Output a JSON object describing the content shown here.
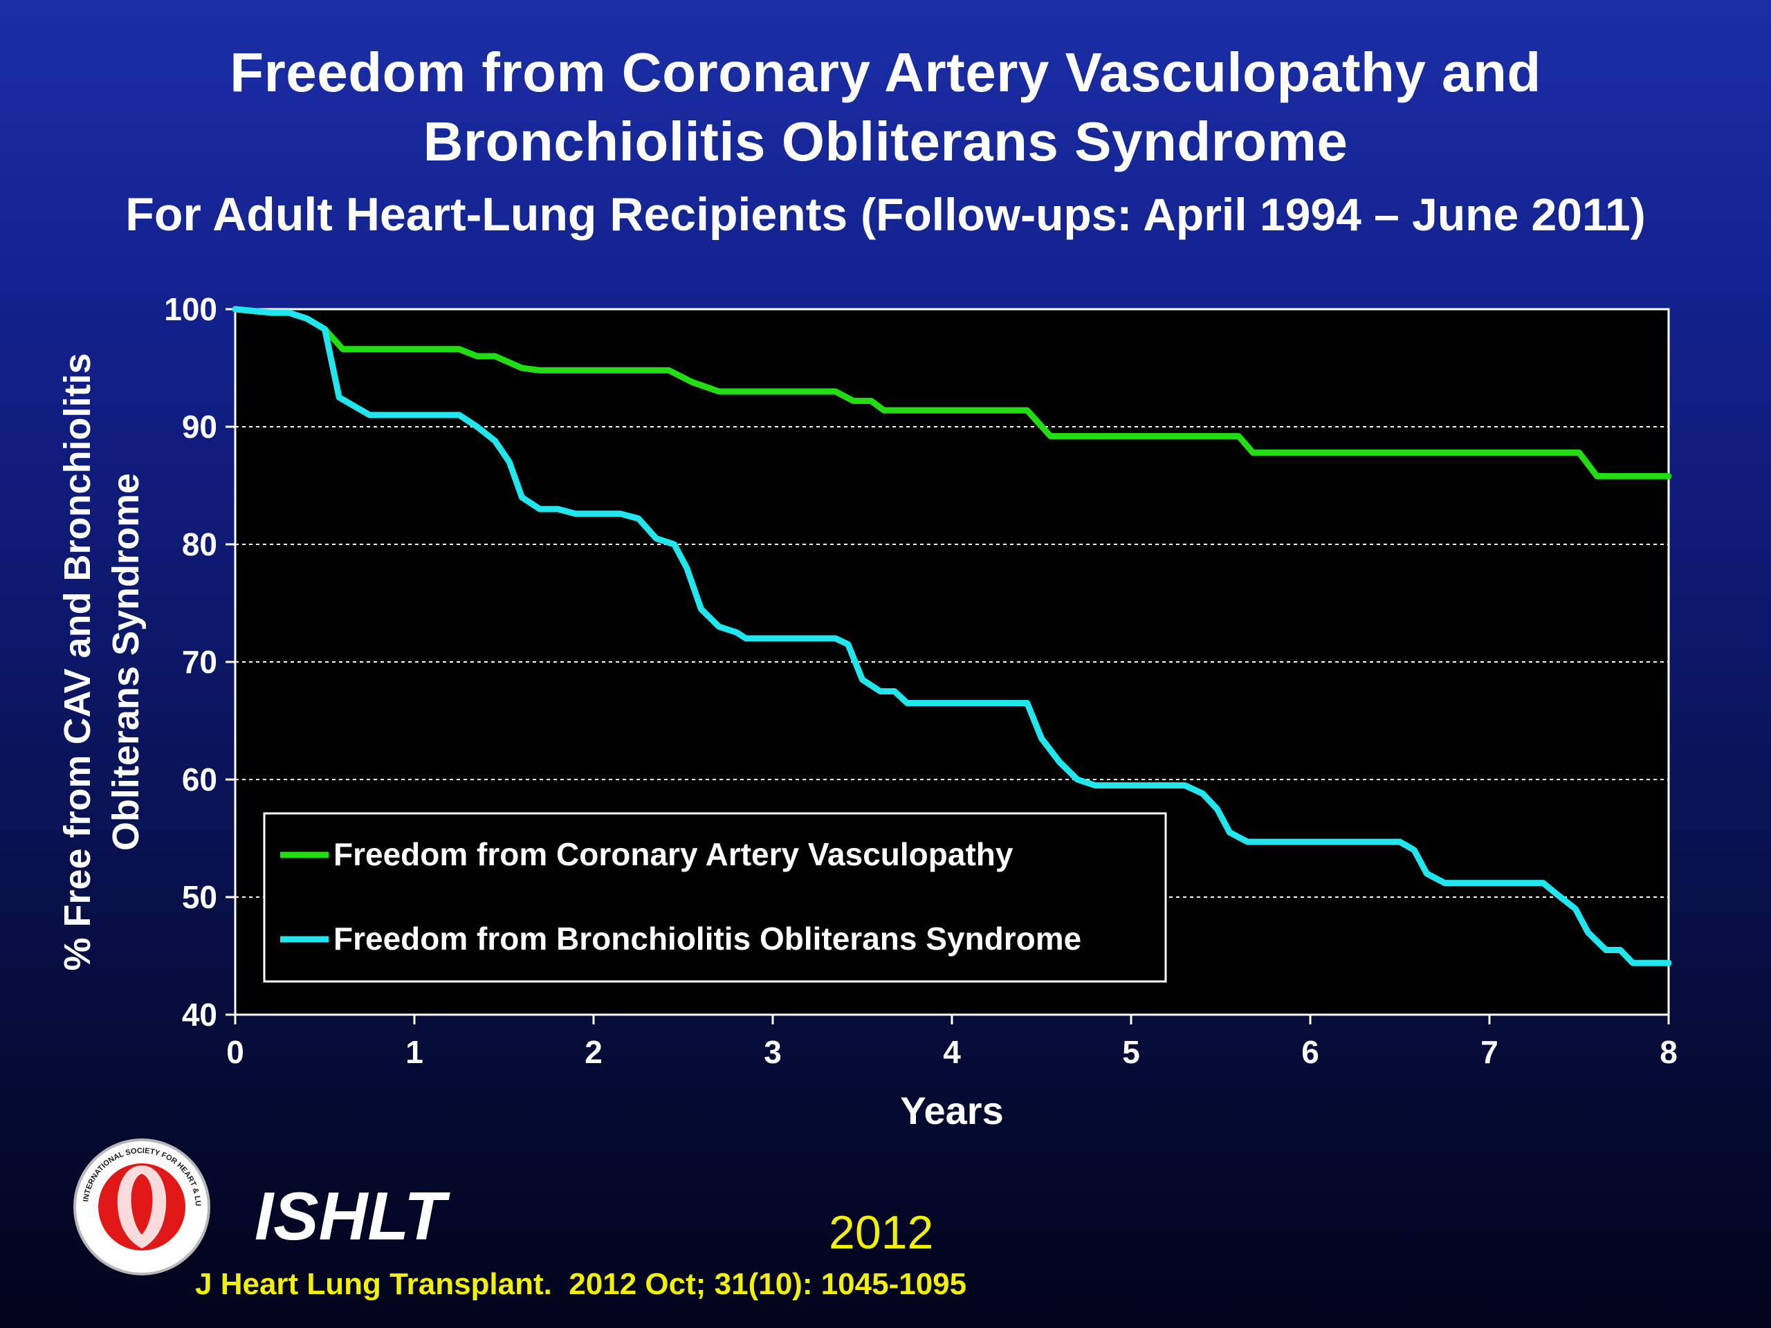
{
  "slide": {
    "title_line1": "Freedom from Coronary Artery Vasculopathy and",
    "title_line2": "Bronchiolitis Obliterans Syndrome",
    "subtitle_main": "For Adult Heart-Lung Recipients",
    "subtitle_paren": "(Follow-ups: April 1994 – June 2011)"
  },
  "footer": {
    "org": "ISHLT",
    "year": "2012",
    "citation": "J Heart Lung Transplant.  2012 Oct; 31(10): 1045-1095",
    "logo_text": "INTERNATIONAL SOCIETY FOR HEART & LUNG TRANSPLANTATION"
  },
  "colors": {
    "cav": "#22dd11",
    "bos": "#22e6ee",
    "yellow": "#f2f200"
  },
  "chart_data": {
    "type": "line",
    "step": true,
    "xlabel": "Years",
    "ylabel_line1": "% Free from CAV and Bronchiolitis",
    "ylabel_line2": "Obliterans Syndrome",
    "xlim": [
      0,
      8
    ],
    "ylim": [
      40,
      100
    ],
    "xticks": [
      "0",
      "1",
      "2",
      "3",
      "4",
      "5",
      "6",
      "7",
      "8"
    ],
    "yticks": [
      "40",
      "50",
      "60",
      "70",
      "80",
      "90",
      "100"
    ],
    "grid": "horizontal dashed",
    "legend_position": "lower-left",
    "series": [
      {
        "name": "Freedom from Coronary Artery Vasculopathy",
        "color_key": "cav",
        "points": [
          [
            0,
            100
          ],
          [
            0.2,
            99.7
          ],
          [
            0.3,
            99.7
          ],
          [
            0.4,
            99.2
          ],
          [
            0.5,
            98.3
          ],
          [
            0.6,
            96.6
          ],
          [
            1.25,
            96.6
          ],
          [
            1.35,
            96
          ],
          [
            1.45,
            96
          ],
          [
            1.6,
            95
          ],
          [
            1.7,
            94.8
          ],
          [
            2.42,
            94.8
          ],
          [
            2.55,
            93.8
          ],
          [
            2.7,
            93
          ],
          [
            3.35,
            93
          ],
          [
            3.45,
            92.2
          ],
          [
            3.55,
            92.2
          ],
          [
            3.62,
            91.4
          ],
          [
            4.42,
            91.4
          ],
          [
            4.55,
            89.2
          ],
          [
            5.6,
            89.2
          ],
          [
            5.68,
            87.8
          ],
          [
            7.5,
            87.8
          ],
          [
            7.6,
            85.8
          ],
          [
            8,
            85.8
          ]
        ]
      },
      {
        "name": "Freedom from Bronchiolitis Obliterans Syndrome",
        "color_key": "bos",
        "points": [
          [
            0,
            100
          ],
          [
            0.2,
            99.7
          ],
          [
            0.3,
            99.7
          ],
          [
            0.4,
            99.2
          ],
          [
            0.5,
            98.3
          ],
          [
            0.58,
            92.5
          ],
          [
            0.75,
            91
          ],
          [
            1.25,
            91
          ],
          [
            1.35,
            90
          ],
          [
            1.45,
            88.8
          ],
          [
            1.53,
            87
          ],
          [
            1.6,
            84
          ],
          [
            1.7,
            83
          ],
          [
            1.8,
            83
          ],
          [
            1.9,
            82.6
          ],
          [
            2.15,
            82.6
          ],
          [
            2.25,
            82.2
          ],
          [
            2.35,
            80.5
          ],
          [
            2.45,
            80
          ],
          [
            2.52,
            78
          ],
          [
            2.6,
            74.5
          ],
          [
            2.7,
            73
          ],
          [
            2.8,
            72.5
          ],
          [
            2.85,
            72
          ],
          [
            3.35,
            72
          ],
          [
            3.42,
            71.5
          ],
          [
            3.5,
            68.5
          ],
          [
            3.6,
            67.5
          ],
          [
            3.68,
            67.5
          ],
          [
            3.75,
            66.5
          ],
          [
            4.42,
            66.5
          ],
          [
            4.5,
            63.5
          ],
          [
            4.6,
            61.5
          ],
          [
            4.7,
            60
          ],
          [
            4.8,
            59.5
          ],
          [
            5.3,
            59.5
          ],
          [
            5.4,
            58.8
          ],
          [
            5.48,
            57.5
          ],
          [
            5.55,
            55.5
          ],
          [
            5.65,
            54.7
          ],
          [
            6.5,
            54.7
          ],
          [
            6.58,
            54
          ],
          [
            6.65,
            52
          ],
          [
            6.75,
            51.2
          ],
          [
            7.3,
            51.2
          ],
          [
            7.38,
            50.2
          ],
          [
            7.48,
            49
          ],
          [
            7.55,
            47
          ],
          [
            7.65,
            45.5
          ],
          [
            7.73,
            45.5
          ],
          [
            7.8,
            44.4
          ],
          [
            8,
            44.4
          ]
        ]
      }
    ]
  }
}
